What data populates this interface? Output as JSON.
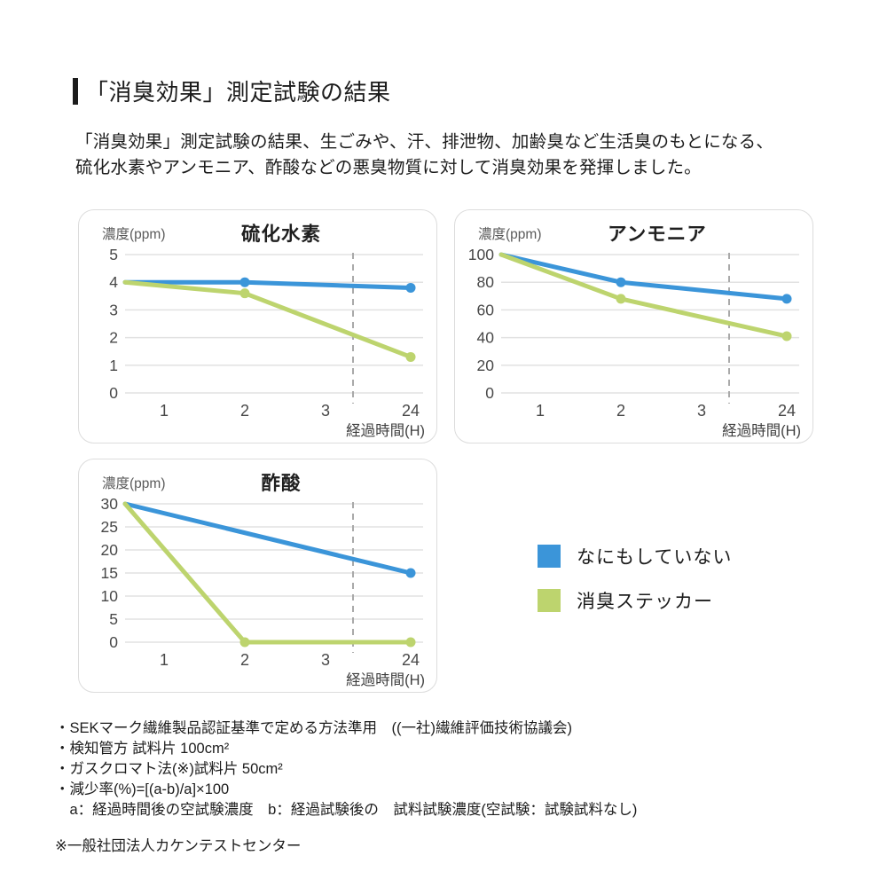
{
  "page": {
    "title": "「消臭効果」測定試験の結果",
    "intro_line1": "「消臭効果」測定試験の結果、生ごみや、汗、排泄物、加齢臭など生活臭のもとになる、",
    "intro_line2": "硫化水素やアンモニア、酢酸などの悪臭物質に対して消臭効果を発揮しました。"
  },
  "colors": {
    "blue": "#3B95D9",
    "green": "#BDD46E",
    "grid": "#E2E2E2",
    "dashed": "#A9A9A9",
    "panel_border": "#DCDCDC",
    "tick_text": "#484848",
    "label_text": "#5A5A5A",
    "title_text": "#1F1F1F"
  },
  "legend": {
    "items": [
      {
        "label": "なにもしていない",
        "color": "#3B95D9",
        "series_key": "blue"
      },
      {
        "label": "消臭ステッカー",
        "color": "#BDD46E",
        "series_key": "green"
      }
    ]
  },
  "chart_data": [
    {
      "type": "line",
      "title": "硫化水素",
      "ylabel": "濃度(ppm)",
      "xlabel": "経過時間(H)",
      "x_ticks": [
        "1",
        "2",
        "3",
        "24"
      ],
      "y_ticks": [
        5,
        4,
        3,
        2,
        1,
        0
      ],
      "ylim": [
        0,
        5
      ],
      "axis_break_after_tick": "3",
      "grid": true,
      "series": [
        {
          "name": "なにもしていない",
          "color": "blue",
          "points": [
            {
              "h": 0,
              "v": 4.0
            },
            {
              "h": 2,
              "v": 4.0
            },
            {
              "h": 24,
              "v": 3.8
            }
          ]
        },
        {
          "name": "消臭ステッカー",
          "color": "green",
          "points": [
            {
              "h": 0,
              "v": 4.0
            },
            {
              "h": 2,
              "v": 3.6
            },
            {
              "h": 24,
              "v": 1.3
            }
          ]
        }
      ]
    },
    {
      "type": "line",
      "title": "アンモニア",
      "ylabel": "濃度(ppm)",
      "xlabel": "経過時間(H)",
      "x_ticks": [
        "1",
        "2",
        "3",
        "24"
      ],
      "y_ticks": [
        100,
        80,
        60,
        40,
        20,
        0
      ],
      "ylim": [
        0,
        100
      ],
      "axis_break_after_tick": "3",
      "grid": true,
      "series": [
        {
          "name": "なにもしていない",
          "color": "blue",
          "points": [
            {
              "h": 0,
              "v": 100
            },
            {
              "h": 2,
              "v": 80
            },
            {
              "h": 24,
              "v": 68
            }
          ]
        },
        {
          "name": "消臭ステッカー",
          "color": "green",
          "points": [
            {
              "h": 0,
              "v": 100
            },
            {
              "h": 2,
              "v": 68
            },
            {
              "h": 24,
              "v": 41
            }
          ]
        }
      ]
    },
    {
      "type": "line",
      "title": "酢酸",
      "ylabel": "濃度(ppm)",
      "xlabel": "経過時間(H)",
      "x_ticks": [
        "1",
        "2",
        "3",
        "24"
      ],
      "y_ticks": [
        30,
        25,
        20,
        15,
        10,
        5,
        0
      ],
      "ylim": [
        0,
        30
      ],
      "axis_break_after_tick": "3",
      "grid": true,
      "series": [
        {
          "name": "なにもしていない",
          "color": "blue",
          "points": [
            {
              "h": 0,
              "v": 30
            },
            {
              "h": 24,
              "v": 15
            }
          ]
        },
        {
          "name": "消臭ステッカー",
          "color": "green",
          "points": [
            {
              "h": 0,
              "v": 30
            },
            {
              "h": 2,
              "v": 0
            },
            {
              "h": 24,
              "v": 0
            }
          ]
        }
      ]
    }
  ],
  "footnotes": {
    "lines": [
      "・SEKマーク繊維製品認証基準で定める方法準用　((一社)繊維評価技術協議会)",
      "・検知管方 試料片 100cm²",
      "・ガスクロマト法(※)試料片 50cm²",
      "・減少率(%)=[(a-b)/a]×100",
      "　a：経過時間後の空試験濃度　b：経過試験後の　試料試験濃度(空試験：試験試料なし)"
    ],
    "source": "※一般社団法人カケンテストセンター"
  }
}
